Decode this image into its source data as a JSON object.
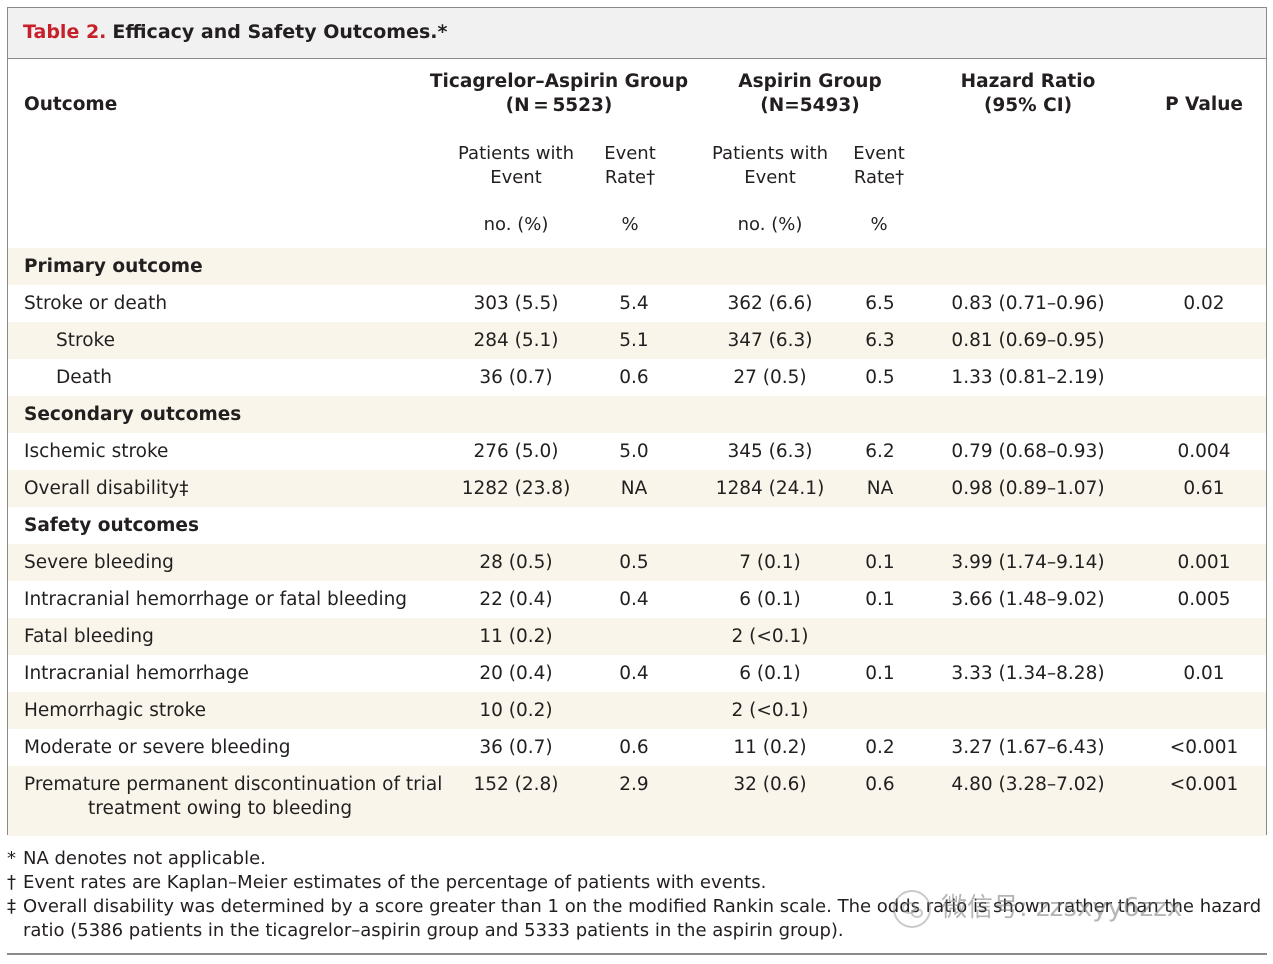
{
  "table": {
    "label": "Table 2.",
    "title": "Efficacy and Safety Outcomes.*",
    "headers": {
      "outcome": "Outcome",
      "group1_l1": "Ticagrelor–Aspirin Group",
      "group1_l2": "(N = 5523)",
      "group2_l1": "Aspirin Group",
      "group2_l2": "(N=5493)",
      "hr_l1": "Hazard Ratio",
      "hr_l2": "(95% CI)",
      "p": "P Value",
      "patients_l1": "Patients with",
      "patients_l2": "Event",
      "rate_l1": "Event",
      "rate_l2": "Rate†",
      "unit_patients": "no. (%)",
      "unit_rate": "%"
    },
    "rows": [
      {
        "outcome": "Primary outcome",
        "type": "section",
        "g1n": "",
        "g1r": "",
        "g2n": "",
        "g2r": "",
        "hr": "",
        "p": ""
      },
      {
        "outcome": "Stroke or death",
        "type": "row",
        "g1n": "303 (5.5)",
        "g1r": "5.4",
        "g2n": "362 (6.6)",
        "g2r": "6.5",
        "hr": "0.83 (0.71–0.96)",
        "p": "0.02"
      },
      {
        "outcome": "Stroke",
        "type": "indent",
        "g1n": "284 (5.1)",
        "g1r": "5.1",
        "g2n": "347 (6.3)",
        "g2r": "6.3",
        "hr": "0.81 (0.69–0.95)",
        "p": ""
      },
      {
        "outcome": "Death",
        "type": "indent",
        "g1n": "36 (0.7)",
        "g1r": "0.6",
        "g2n": "27 (0.5)",
        "g2r": "0.5",
        "hr": "1.33 (0.81–2.19)",
        "p": ""
      },
      {
        "outcome": "Secondary outcomes",
        "type": "section",
        "g1n": "",
        "g1r": "",
        "g2n": "",
        "g2r": "",
        "hr": "",
        "p": ""
      },
      {
        "outcome": "Ischemic stroke",
        "type": "row",
        "g1n": "276 (5.0)",
        "g1r": "5.0",
        "g2n": "345 (6.3)",
        "g2r": "6.2",
        "hr": "0.79 (0.68–0.93)",
        "p": "0.004"
      },
      {
        "outcome": "Overall disability‡",
        "type": "row",
        "g1n": "1282 (23.8)",
        "g1r": "NA",
        "g2n": "1284 (24.1)",
        "g2r": "NA",
        "hr": "0.98 (0.89–1.07)",
        "p": "0.61"
      },
      {
        "outcome": "Safety outcomes",
        "type": "section",
        "g1n": "",
        "g1r": "",
        "g2n": "",
        "g2r": "",
        "hr": "",
        "p": ""
      },
      {
        "outcome": "Severe bleeding",
        "type": "row",
        "g1n": "28 (0.5)",
        "g1r": "0.5",
        "g2n": "7 (0.1)",
        "g2r": "0.1",
        "hr": "3.99 (1.74–9.14)",
        "p": "0.001"
      },
      {
        "outcome": "Intracranial hemorrhage or fatal bleeding",
        "type": "row",
        "g1n": "22 (0.4)",
        "g1r": "0.4",
        "g2n": "6 (0.1)",
        "g2r": "0.1",
        "hr": "3.66 (1.48–9.02)",
        "p": "0.005"
      },
      {
        "outcome": "Fatal bleeding",
        "type": "row",
        "g1n": "11 (0.2)",
        "g1r": "",
        "g2n": "2 (<0.1)",
        "g2r": "",
        "hr": "",
        "p": ""
      },
      {
        "outcome": "Intracranial hemorrhage",
        "type": "row",
        "g1n": "20 (0.4)",
        "g1r": "0.4",
        "g2n": "6 (0.1)",
        "g2r": "0.1",
        "hr": "3.33 (1.34–8.28)",
        "p": "0.01"
      },
      {
        "outcome": "Hemorrhagic stroke",
        "type": "row",
        "g1n": "10 (0.2)",
        "g1r": "",
        "g2n": "2 (<0.1)",
        "g2r": "",
        "hr": "",
        "p": ""
      },
      {
        "outcome": "Moderate or severe bleeding",
        "type": "row",
        "g1n": "36 (0.7)",
        "g1r": "0.6",
        "g2n": "11 (0.2)",
        "g2r": "0.2",
        "hr": "3.27 (1.67–6.43)",
        "p": "<0.001"
      },
      {
        "outcome": "Premature permanent discontinuation of trial",
        "outcome2": "treatment owing to bleeding",
        "type": "row2",
        "g1n": "152 (2.8)",
        "g1r": "2.9",
        "g2n": "32 (0.6)",
        "g2r": "0.6",
        "hr": "4.80 (3.28–7.02)",
        "p": "<0.001"
      }
    ]
  },
  "footnotes": [
    {
      "sym": "*",
      "text": "NA denotes not applicable."
    },
    {
      "sym": "†",
      "text": "Event rates are Kaplan–Meier estimates of the percentage of patients with events."
    },
    {
      "sym": "‡",
      "text": "Overall disability was determined by a score greater than 1 on the modified Rankin scale. The odds ratio is shown rather than the hazard",
      "text2": "ratio (5386 patients in the ticagrelor–aspirin group and 5333 patients in the aspirin group)."
    }
  ],
  "watermark": {
    "text": "微信号: zzsxyy6zzx",
    "icon": "wechat-icon"
  }
}
